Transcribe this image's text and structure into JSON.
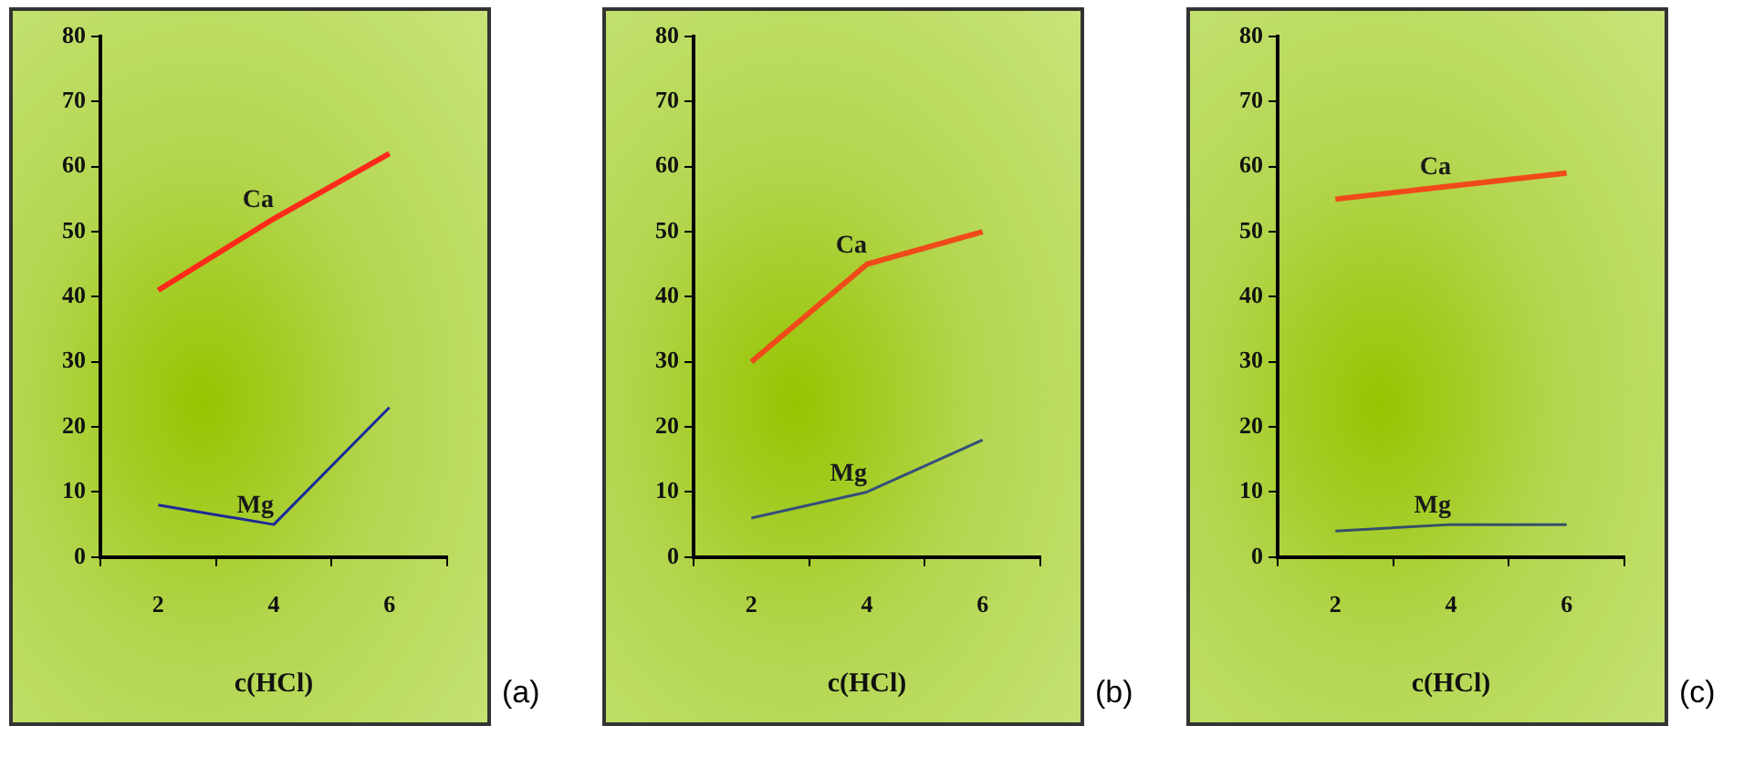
{
  "chart_data": [
    {
      "type": "line",
      "xlabel": "c(HCl)",
      "categories": [
        "2",
        "4",
        "6"
      ],
      "ylim": [
        0,
        80
      ],
      "yticks": [
        0,
        10,
        20,
        30,
        40,
        50,
        60,
        70,
        80
      ],
      "marker": "none",
      "line_style": "solid",
      "annotations": [
        "(a)"
      ],
      "series": [
        {
          "name": "Ca",
          "color": "#ff2a1a",
          "values": [
            41,
            52,
            62
          ]
        },
        {
          "name": "Mg",
          "color": "#1c2a9a",
          "values": [
            8,
            5,
            23
          ]
        }
      ]
    },
    {
      "type": "line",
      "xlabel": "c(HCl)",
      "categories": [
        "2",
        "4",
        "6"
      ],
      "ylim": [
        0,
        80
      ],
      "yticks": [
        0,
        10,
        20,
        30,
        40,
        50,
        60,
        70,
        80
      ],
      "marker": "none",
      "line_style": "solid",
      "annotations": [
        "(b)"
      ],
      "series": [
        {
          "name": "Ca",
          "color": "#f04a1a",
          "values": [
            30,
            45,
            50
          ]
        },
        {
          "name": "Mg",
          "color": "#34507a",
          "values": [
            6,
            10,
            18
          ]
        }
      ]
    },
    {
      "type": "line",
      "xlabel": "c(HCl)",
      "categories": [
        "2",
        "4",
        "6"
      ],
      "ylim": [
        0,
        80
      ],
      "yticks": [
        0,
        10,
        20,
        30,
        40,
        50,
        60,
        70,
        80
      ],
      "marker": "none",
      "line_style": "solid",
      "annotations": [
        "(c)"
      ],
      "series": [
        {
          "name": "Ca",
          "color": "#f04a1a",
          "values": [
            55,
            57,
            59
          ]
        },
        {
          "name": "Mg",
          "color": "#34506a",
          "values": [
            4,
            5,
            5
          ]
        }
      ]
    }
  ]
}
